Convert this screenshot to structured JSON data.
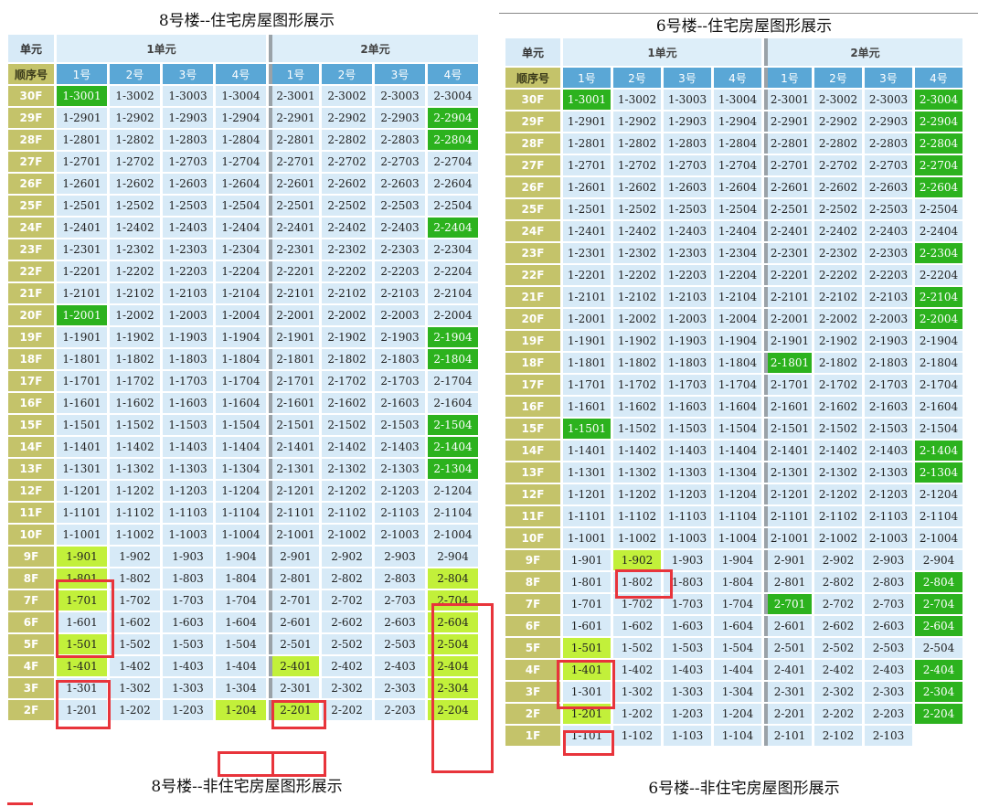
{
  "left": {
    "title": "8号楼--住宅房屋图形展示",
    "bottom_title": "8号楼--非住宅房屋图形展示",
    "corner_top": "单元",
    "corner_bottom": "顺序号",
    "units": [
      "1单元",
      "2单元"
    ],
    "nums": [
      "1号",
      "2号",
      "3号",
      "4号",
      "1号",
      "2号",
      "3号",
      "4号"
    ],
    "floors": [
      "30F",
      "29F",
      "28F",
      "27F",
      "26F",
      "25F",
      "24F",
      "23F",
      "22F",
      "21F",
      "20F",
      "19F",
      "18F",
      "17F",
      "16F",
      "15F",
      "14F",
      "13F",
      "12F",
      "11F",
      "10F",
      "9F",
      "8F",
      "7F",
      "6F",
      "5F",
      "4F",
      "3F",
      "2F"
    ],
    "rooms": [
      [
        "1-3001",
        "1-3002",
        "1-3003",
        "1-3004",
        "2-3001",
        "2-3002",
        "2-3003",
        "2-3004"
      ],
      [
        "1-2901",
        "1-2902",
        "1-2903",
        "1-2904",
        "2-2901",
        "2-2902",
        "2-2903",
        "2-2904"
      ],
      [
        "1-2801",
        "1-2802",
        "1-2803",
        "1-2804",
        "2-2801",
        "2-2802",
        "2-2803",
        "2-2804"
      ],
      [
        "1-2701",
        "1-2702",
        "1-2703",
        "1-2704",
        "2-2701",
        "2-2702",
        "2-2703",
        "2-2704"
      ],
      [
        "1-2601",
        "1-2602",
        "1-2603",
        "1-2604",
        "2-2601",
        "2-2602",
        "2-2603",
        "2-2604"
      ],
      [
        "1-2501",
        "1-2502",
        "1-2503",
        "1-2504",
        "2-2501",
        "2-2502",
        "2-2503",
        "2-2504"
      ],
      [
        "1-2401",
        "1-2402",
        "1-2403",
        "1-2404",
        "2-2401",
        "2-2402",
        "2-2403",
        "2-2404"
      ],
      [
        "1-2301",
        "1-2302",
        "1-2303",
        "1-2304",
        "2-2301",
        "2-2302",
        "2-2303",
        "2-2304"
      ],
      [
        "1-2201",
        "1-2202",
        "1-2203",
        "1-2204",
        "2-2201",
        "2-2202",
        "2-2203",
        "2-2204"
      ],
      [
        "1-2101",
        "1-2102",
        "1-2103",
        "1-2104",
        "2-2101",
        "2-2102",
        "2-2103",
        "2-2104"
      ],
      [
        "1-2001",
        "1-2002",
        "1-2003",
        "1-2004",
        "2-2001",
        "2-2002",
        "2-2003",
        "2-2004"
      ],
      [
        "1-1901",
        "1-1902",
        "1-1903",
        "1-1904",
        "2-1901",
        "2-1902",
        "2-1903",
        "2-1904"
      ],
      [
        "1-1801",
        "1-1802",
        "1-1803",
        "1-1804",
        "2-1801",
        "2-1802",
        "2-1803",
        "2-1804"
      ],
      [
        "1-1701",
        "1-1702",
        "1-1703",
        "1-1704",
        "2-1701",
        "2-1702",
        "2-1703",
        "2-1704"
      ],
      [
        "1-1601",
        "1-1602",
        "1-1603",
        "1-1604",
        "2-1601",
        "2-1602",
        "2-1603",
        "2-1604"
      ],
      [
        "1-1501",
        "1-1502",
        "1-1503",
        "1-1504",
        "2-1501",
        "2-1502",
        "2-1503",
        "2-1504"
      ],
      [
        "1-1401",
        "1-1402",
        "1-1403",
        "1-1404",
        "2-1401",
        "2-1402",
        "2-1403",
        "2-1404"
      ],
      [
        "1-1301",
        "1-1302",
        "1-1303",
        "1-1304",
        "2-1301",
        "2-1302",
        "2-1303",
        "2-1304"
      ],
      [
        "1-1201",
        "1-1202",
        "1-1203",
        "1-1204",
        "2-1201",
        "2-1202",
        "2-1203",
        "2-1204"
      ],
      [
        "1-1101",
        "1-1102",
        "1-1103",
        "1-1104",
        "2-1101",
        "2-1102",
        "2-1103",
        "2-1104"
      ],
      [
        "1-1001",
        "1-1002",
        "1-1003",
        "1-1004",
        "2-1001",
        "2-1002",
        "2-1003",
        "2-1004"
      ],
      [
        "1-901",
        "1-902",
        "1-903",
        "1-904",
        "2-901",
        "2-902",
        "2-903",
        "2-904"
      ],
      [
        "1-801",
        "1-802",
        "1-803",
        "1-804",
        "2-801",
        "2-802",
        "2-803",
        "2-804"
      ],
      [
        "1-701",
        "1-702",
        "1-703",
        "1-704",
        "2-701",
        "2-702",
        "2-703",
        "2-704"
      ],
      [
        "1-601",
        "1-602",
        "1-603",
        "1-604",
        "2-601",
        "2-602",
        "2-603",
        "2-604"
      ],
      [
        "1-501",
        "1-502",
        "1-503",
        "1-504",
        "2-501",
        "2-502",
        "2-503",
        "2-504"
      ],
      [
        "1-401",
        "1-402",
        "1-403",
        "1-404",
        "2-401",
        "2-402",
        "2-403",
        "2-404"
      ],
      [
        "1-301",
        "1-302",
        "1-303",
        "1-304",
        "2-301",
        "2-302",
        "2-303",
        "2-304"
      ],
      [
        "1-201",
        "1-202",
        "1-203",
        "1-204",
        "2-201",
        "2-202",
        "2-203",
        "2-204"
      ]
    ],
    "status": [
      [
        "g",
        "",
        "",
        "",
        "",
        "",
        "",
        ""
      ],
      [
        "",
        "",
        "",
        "",
        "",
        "",
        "",
        "g"
      ],
      [
        "",
        "",
        "",
        "",
        "",
        "",
        "",
        "g"
      ],
      [
        "",
        "",
        "",
        "",
        "",
        "",
        "",
        ""
      ],
      [
        "",
        "",
        "",
        "",
        "",
        "",
        "",
        ""
      ],
      [
        "",
        "",
        "",
        "",
        "",
        "",
        "",
        ""
      ],
      [
        "",
        "",
        "",
        "",
        "",
        "",
        "",
        "g"
      ],
      [
        "",
        "",
        "",
        "",
        "",
        "",
        "",
        ""
      ],
      [
        "",
        "",
        "",
        "",
        "",
        "",
        "",
        ""
      ],
      [
        "",
        "",
        "",
        "",
        "",
        "",
        "",
        ""
      ],
      [
        "g",
        "",
        "",
        "",
        "",
        "",
        "",
        ""
      ],
      [
        "",
        "",
        "",
        "",
        "",
        "",
        "",
        "g"
      ],
      [
        "",
        "",
        "",
        "",
        "",
        "",
        "",
        "g"
      ],
      [
        "",
        "",
        "",
        "",
        "",
        "",
        "",
        ""
      ],
      [
        "",
        "",
        "",
        "",
        "",
        "",
        "",
        ""
      ],
      [
        "",
        "",
        "",
        "",
        "",
        "",
        "",
        "g"
      ],
      [
        "",
        "",
        "",
        "",
        "",
        "",
        "",
        "g"
      ],
      [
        "",
        "",
        "",
        "",
        "",
        "",
        "",
        "g"
      ],
      [
        "",
        "",
        "",
        "",
        "",
        "",
        "",
        ""
      ],
      [
        "",
        "",
        "",
        "",
        "",
        "",
        "",
        ""
      ],
      [
        "",
        "",
        "",
        "",
        "",
        "",
        "",
        ""
      ],
      [
        "y",
        "",
        "",
        "",
        "",
        "",
        "",
        ""
      ],
      [
        "y",
        "",
        "",
        "",
        "",
        "",
        "",
        "y"
      ],
      [
        "y",
        "",
        "",
        "",
        "",
        "",
        "",
        "y"
      ],
      [
        "",
        "",
        "",
        "",
        "",
        "",
        "",
        "y"
      ],
      [
        "y",
        "",
        "",
        "",
        "",
        "",
        "",
        "y"
      ],
      [
        "y",
        "",
        "",
        "",
        "y",
        "",
        "",
        "y"
      ],
      [
        "",
        "",
        "",
        "",
        "",
        "",
        "",
        "y"
      ],
      [
        "",
        "",
        "",
        "y",
        "y",
        "",
        "",
        "y"
      ]
    ]
  },
  "right": {
    "title": "6号楼--住宅房屋图形展示",
    "bottom_title": "6号楼--非住宅房屋图形展示",
    "corner_top": "单元",
    "corner_bottom": "顺序号",
    "units": [
      "1单元",
      "2单元"
    ],
    "nums": [
      "1号",
      "2号",
      "3号",
      "4号",
      "1号",
      "2号",
      "3号",
      "4号"
    ],
    "floors": [
      "30F",
      "29F",
      "28F",
      "27F",
      "26F",
      "25F",
      "24F",
      "23F",
      "22F",
      "21F",
      "20F",
      "19F",
      "18F",
      "17F",
      "16F",
      "15F",
      "14F",
      "13F",
      "12F",
      "11F",
      "10F",
      "9F",
      "8F",
      "7F",
      "6F",
      "5F",
      "4F",
      "3F",
      "2F",
      "1F"
    ],
    "rooms": [
      [
        "1-3001",
        "1-3002",
        "1-3003",
        "1-3004",
        "2-3001",
        "2-3002",
        "2-3003",
        "2-3004"
      ],
      [
        "1-2901",
        "1-2902",
        "1-2903",
        "1-2904",
        "2-2901",
        "2-2902",
        "2-2903",
        "2-2904"
      ],
      [
        "1-2801",
        "1-2802",
        "1-2803",
        "1-2804",
        "2-2801",
        "2-2802",
        "2-2803",
        "2-2804"
      ],
      [
        "1-2701",
        "1-2702",
        "1-2703",
        "1-2704",
        "2-2701",
        "2-2702",
        "2-2703",
        "2-2704"
      ],
      [
        "1-2601",
        "1-2602",
        "1-2603",
        "1-2604",
        "2-2601",
        "2-2602",
        "2-2603",
        "2-2604"
      ],
      [
        "1-2501",
        "1-2502",
        "1-2503",
        "1-2504",
        "2-2501",
        "2-2502",
        "2-2503",
        "2-2504"
      ],
      [
        "1-2401",
        "1-2402",
        "1-2403",
        "1-2404",
        "2-2401",
        "2-2402",
        "2-2403",
        "2-2404"
      ],
      [
        "1-2301",
        "1-2302",
        "1-2303",
        "1-2304",
        "2-2301",
        "2-2302",
        "2-2303",
        "2-2304"
      ],
      [
        "1-2201",
        "1-2202",
        "1-2203",
        "1-2204",
        "2-2201",
        "2-2202",
        "2-2203",
        "2-2204"
      ],
      [
        "1-2101",
        "1-2102",
        "1-2103",
        "1-2104",
        "2-2101",
        "2-2102",
        "2-2103",
        "2-2104"
      ],
      [
        "1-2001",
        "1-2002",
        "1-2003",
        "1-2004",
        "2-2001",
        "2-2002",
        "2-2003",
        "2-2004"
      ],
      [
        "1-1901",
        "1-1902",
        "1-1903",
        "1-1904",
        "2-1901",
        "2-1902",
        "2-1903",
        "2-1904"
      ],
      [
        "1-1801",
        "1-1802",
        "1-1803",
        "1-1804",
        "2-1801",
        "2-1802",
        "2-1803",
        "2-1804"
      ],
      [
        "1-1701",
        "1-1702",
        "1-1703",
        "1-1704",
        "2-1701",
        "2-1702",
        "2-1703",
        "2-1704"
      ],
      [
        "1-1601",
        "1-1602",
        "1-1603",
        "1-1604",
        "2-1601",
        "2-1602",
        "2-1603",
        "2-1604"
      ],
      [
        "1-1501",
        "1-1502",
        "1-1503",
        "1-1504",
        "2-1501",
        "2-1502",
        "2-1503",
        "2-1504"
      ],
      [
        "1-1401",
        "1-1402",
        "1-1403",
        "1-1404",
        "2-1401",
        "2-1402",
        "2-1403",
        "2-1404"
      ],
      [
        "1-1301",
        "1-1302",
        "1-1303",
        "1-1304",
        "2-1301",
        "2-1302",
        "2-1303",
        "2-1304"
      ],
      [
        "1-1201",
        "1-1202",
        "1-1203",
        "1-1204",
        "2-1201",
        "2-1202",
        "2-1203",
        "2-1204"
      ],
      [
        "1-1101",
        "1-1102",
        "1-1103",
        "1-1104",
        "2-1101",
        "2-1102",
        "2-1103",
        "2-1104"
      ],
      [
        "1-1001",
        "1-1002",
        "1-1003",
        "1-1004",
        "2-1001",
        "2-1002",
        "2-1003",
        "2-1004"
      ],
      [
        "1-901",
        "1-902",
        "1-903",
        "1-904",
        "2-901",
        "2-902",
        "2-903",
        "2-904"
      ],
      [
        "1-801",
        "1-802",
        "1-803",
        "1-804",
        "2-801",
        "2-802",
        "2-803",
        "2-804"
      ],
      [
        "1-701",
        "1-702",
        "1-703",
        "1-704",
        "2-701",
        "2-702",
        "2-703",
        "2-704"
      ],
      [
        "1-601",
        "1-602",
        "1-603",
        "1-604",
        "2-601",
        "2-602",
        "2-603",
        "2-604"
      ],
      [
        "1-501",
        "1-502",
        "1-503",
        "1-504",
        "2-501",
        "2-502",
        "2-503",
        "2-504"
      ],
      [
        "1-401",
        "1-402",
        "1-403",
        "1-404",
        "2-401",
        "2-402",
        "2-403",
        "2-404"
      ],
      [
        "1-301",
        "1-302",
        "1-303",
        "1-304",
        "2-301",
        "2-302",
        "2-303",
        "2-304"
      ],
      [
        "1-201",
        "1-202",
        "1-203",
        "1-204",
        "2-201",
        "2-202",
        "2-203",
        "2-204"
      ],
      [
        "1-101",
        "1-102",
        "1-103",
        "1-104",
        "2-101",
        "2-102",
        "2-103",
        ""
      ]
    ],
    "status": [
      [
        "g",
        "",
        "",
        "",
        "",
        "",
        "",
        "g"
      ],
      [
        "",
        "",
        "",
        "",
        "",
        "",
        "",
        "g"
      ],
      [
        "",
        "",
        "",
        "",
        "",
        "",
        "",
        "g"
      ],
      [
        "",
        "",
        "",
        "",
        "",
        "",
        "",
        "g"
      ],
      [
        "",
        "",
        "",
        "",
        "",
        "",
        "",
        "g"
      ],
      [
        "",
        "",
        "",
        "",
        "",
        "",
        "",
        ""
      ],
      [
        "",
        "",
        "",
        "",
        "",
        "",
        "",
        ""
      ],
      [
        "",
        "",
        "",
        "",
        "",
        "",
        "",
        "g"
      ],
      [
        "",
        "",
        "",
        "",
        "",
        "",
        "",
        ""
      ],
      [
        "",
        "",
        "",
        "",
        "",
        "",
        "",
        "g"
      ],
      [
        "",
        "",
        "",
        "",
        "",
        "",
        "",
        "g"
      ],
      [
        "",
        "",
        "",
        "",
        "",
        "",
        "",
        ""
      ],
      [
        "",
        "",
        "",
        "",
        "g",
        "",
        "",
        ""
      ],
      [
        "",
        "",
        "",
        "",
        "",
        "",
        "",
        ""
      ],
      [
        "",
        "",
        "",
        "",
        "",
        "",
        "",
        ""
      ],
      [
        "g",
        "",
        "",
        "",
        "",
        "",
        "",
        ""
      ],
      [
        "",
        "",
        "",
        "",
        "",
        "",
        "",
        "g"
      ],
      [
        "",
        "",
        "",
        "",
        "",
        "",
        "",
        "g"
      ],
      [
        "",
        "",
        "",
        "",
        "",
        "",
        "",
        ""
      ],
      [
        "",
        "",
        "",
        "",
        "",
        "",
        "",
        ""
      ],
      [
        "",
        "",
        "",
        "",
        "",
        "",
        "",
        ""
      ],
      [
        "",
        "y",
        "",
        "",
        "",
        "",
        "",
        ""
      ],
      [
        "",
        "",
        "",
        "",
        "",
        "",
        "",
        "g"
      ],
      [
        "",
        "",
        "",
        "",
        "g",
        "",
        "",
        "g"
      ],
      [
        "",
        "",
        "",
        "",
        "",
        "",
        "",
        "g"
      ],
      [
        "y",
        "",
        "",
        "",
        "",
        "",
        "",
        ""
      ],
      [
        "y",
        "",
        "",
        "",
        "",
        "",
        "",
        "g"
      ],
      [
        "",
        "",
        "",
        "",
        "",
        "",
        "",
        "g"
      ],
      [
        "y",
        "",
        "",
        "",
        "",
        "",
        "",
        "g"
      ],
      [
        "",
        "",
        "",
        "",
        "",
        "",
        "",
        "blank"
      ]
    ]
  },
  "colors": {
    "sold_green": "#2cb21e",
    "highlight_yellow": "#c2f03a",
    "cell_blue": "#d7eaf7",
    "header_blue": "#5aa7d6",
    "floor_olive": "#c4c36a",
    "mark_red": "#e8343b"
  }
}
